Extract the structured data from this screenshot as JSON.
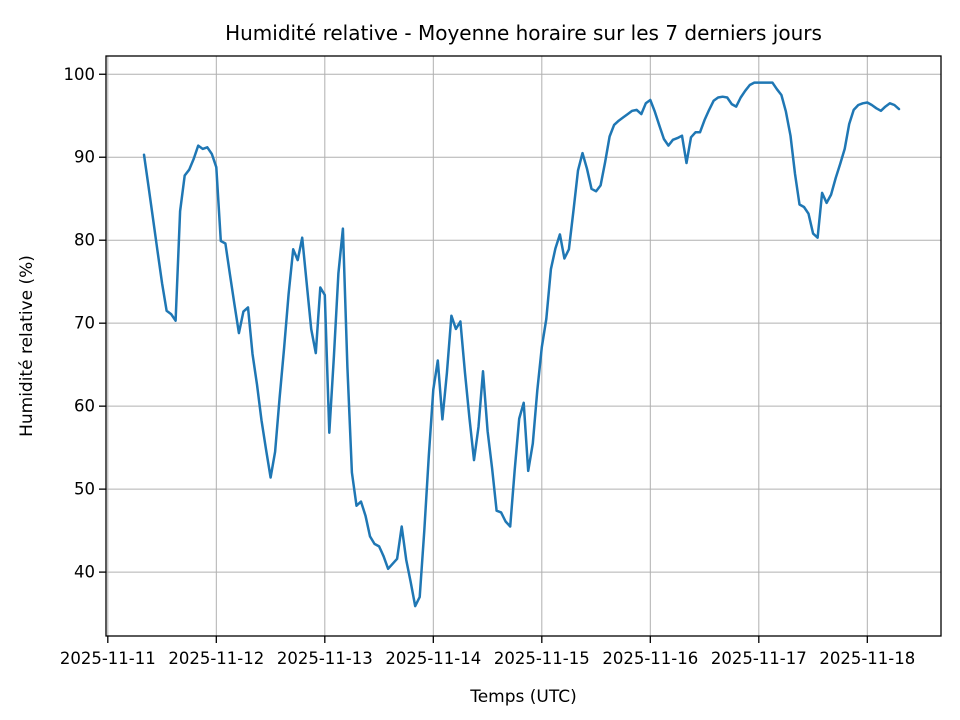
{
  "chart_data": {
    "type": "line",
    "title": "Humidité relative - Moyenne horaire sur les 7 derniers jours",
    "xlabel": "Temps (UTC)",
    "ylabel": "Humidité relative (%)",
    "grid": true,
    "legend": "none",
    "background": "#ffffff",
    "grid_color": "#b0b0b0",
    "frame_color": "#000000",
    "line_color": "#1f77b4",
    "ylim": [
      32.3,
      102.2
    ],
    "xlim_hours": [
      -8.4,
      176.3
    ],
    "y_ticks": [
      40,
      50,
      60,
      70,
      80,
      90,
      100
    ],
    "x_ticks": [
      {
        "label": "2025-11-11",
        "hours_from_start": -8
      },
      {
        "label": "2025-11-12",
        "hours_from_start": 16
      },
      {
        "label": "2025-11-13",
        "hours_from_start": 40
      },
      {
        "label": "2025-11-14",
        "hours_from_start": 64
      },
      {
        "label": "2025-11-15",
        "hours_from_start": 88
      },
      {
        "label": "2025-11-16",
        "hours_from_start": 112
      },
      {
        "label": "2025-11-17",
        "hours_from_start": 136
      },
      {
        "label": "2025-11-18",
        "hours_from_start": 160
      }
    ],
    "series": [
      {
        "name": "Humidité relative - moyenne horaire",
        "color": "#1f77b4",
        "x_start_utc": "2025-11-11 08:00",
        "x_end_utc": "2025-11-18 07:00",
        "interval_hours": 1,
        "values": [
          90.3,
          86.5,
          82.6,
          78.7,
          74.8,
          71.5,
          71.1,
          70.3,
          83.5,
          87.8,
          88.5,
          89.8,
          91.4,
          91.0,
          91.2,
          90.4,
          88.8,
          79.9,
          79.6,
          75.9,
          72.3,
          68.8,
          71.4,
          71.9,
          66.3,
          62.6,
          58.3,
          54.8,
          51.4,
          54.5,
          61.0,
          67.0,
          73.5,
          78.9,
          77.6,
          80.3,
          74.8,
          69.3,
          66.4,
          74.3,
          73.4,
          56.8,
          66.0,
          76.0,
          81.4,
          64.7,
          52.0,
          48.0,
          48.5,
          46.8,
          44.3,
          43.4,
          43.1,
          41.9,
          40.4,
          41.0,
          41.6,
          45.5,
          41.5,
          38.8,
          35.9,
          37.0,
          45.0,
          54.0,
          62.0,
          65.5,
          58.4,
          64.0,
          70.9,
          69.3,
          70.2,
          64.0,
          58.5,
          53.5,
          57.5,
          64.2,
          57.0,
          52.5,
          47.4,
          47.2,
          46.1,
          45.5,
          52.3,
          58.5,
          60.4,
          52.2,
          55.5,
          61.9,
          67.1,
          70.5,
          76.5,
          79.0,
          80.7,
          77.8,
          78.9,
          83.6,
          88.4,
          90.5,
          88.6,
          86.2,
          85.9,
          86.6,
          89.4,
          92.5,
          93.9,
          94.4,
          94.8,
          95.2,
          95.6,
          95.7,
          95.2,
          96.5,
          96.9,
          95.5,
          93.8,
          92.2,
          91.4,
          92.1,
          92.3,
          92.6,
          89.3,
          92.4,
          93.0,
          93.0,
          94.5,
          95.7,
          96.8,
          97.2,
          97.3,
          97.2,
          96.4,
          96.1,
          97.2,
          98.0,
          98.7,
          99.0,
          99.0,
          99.0,
          99.0,
          99.0,
          98.2,
          97.5,
          95.5,
          92.6,
          88.0,
          84.3,
          84.0,
          83.2,
          80.8,
          80.3,
          85.7,
          84.5,
          85.5,
          87.5,
          89.2,
          91.0,
          94.0,
          95.7,
          96.3,
          96.5,
          96.6,
          96.3,
          95.9,
          95.6,
          96.1,
          96.5,
          96.3,
          95.8
        ]
      }
    ]
  }
}
